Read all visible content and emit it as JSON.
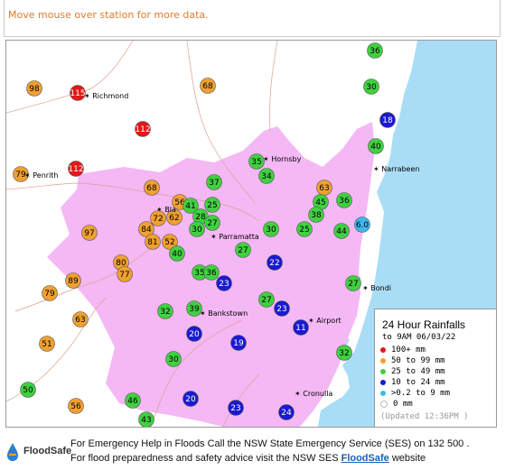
{
  "info_text": "Move mouse over station for more data.",
  "colors": {
    "red": "#e01919",
    "orange": "#f0a030",
    "green": "#40d040",
    "blue": "#1a1ad0",
    "cyan": "#40b8ee",
    "urban": "#f4b8f4",
    "sea": "#a8ddf5",
    "land": "#ffffff"
  },
  "places": [
    {
      "id": "richmond",
      "name": "Richmond"
    },
    {
      "id": "penrith",
      "name": "Penrith"
    },
    {
      "id": "hornsby",
      "name": "Hornsby"
    },
    {
      "id": "narrabeen",
      "name": "Narrabeen"
    },
    {
      "id": "blacktown",
      "name": "Bla"
    },
    {
      "id": "parramatta",
      "name": "Parramatta"
    },
    {
      "id": "bondi",
      "name": "Bondi"
    },
    {
      "id": "bankstown",
      "name": "Bankstown"
    },
    {
      "id": "airport",
      "name": "Airport"
    },
    {
      "id": "cronulla",
      "name": "Cronulla"
    }
  ],
  "stations": [
    {
      "v": "98",
      "c": "orange"
    },
    {
      "v": "115",
      "c": "red"
    },
    {
      "v": "68",
      "c": "orange"
    },
    {
      "v": "36",
      "c": "green"
    },
    {
      "v": "30",
      "c": "green"
    },
    {
      "v": "18",
      "c": "blue"
    },
    {
      "v": "112",
      "c": "red"
    },
    {
      "v": "40",
      "c": "green"
    },
    {
      "v": "79",
      "c": "orange"
    },
    {
      "v": "112",
      "c": "red"
    },
    {
      "v": "35",
      "c": "green"
    },
    {
      "v": "34",
      "c": "green"
    },
    {
      "v": "68",
      "c": "orange"
    },
    {
      "v": "37",
      "c": "green"
    },
    {
      "v": "63",
      "c": "orange"
    },
    {
      "v": "45",
      "c": "green"
    },
    {
      "v": "36",
      "c": "green"
    },
    {
      "v": "56",
      "c": "orange"
    },
    {
      "v": "41",
      "c": "green"
    },
    {
      "v": "25",
      "c": "green"
    },
    {
      "v": "72",
      "c": "orange"
    },
    {
      "v": "62",
      "c": "orange"
    },
    {
      "v": "28",
      "c": "green"
    },
    {
      "v": "27",
      "c": "green"
    },
    {
      "v": "38",
      "c": "green"
    },
    {
      "v": "6.0",
      "c": "cyan"
    },
    {
      "v": "84",
      "c": "orange"
    },
    {
      "v": "30",
      "c": "green"
    },
    {
      "v": "30",
      "c": "green"
    },
    {
      "v": "25",
      "c": "green"
    },
    {
      "v": "44",
      "c": "green"
    },
    {
      "v": "97",
      "c": "orange"
    },
    {
      "v": "81",
      "c": "orange"
    },
    {
      "v": "52",
      "c": "orange"
    },
    {
      "v": "27",
      "c": "green"
    },
    {
      "v": "40",
      "c": "green"
    },
    {
      "v": "80",
      "c": "orange"
    },
    {
      "v": "77",
      "c": "orange"
    },
    {
      "v": "22",
      "c": "blue"
    },
    {
      "v": "89",
      "c": "orange"
    },
    {
      "v": "35",
      "c": "green"
    },
    {
      "v": "36",
      "c": "green"
    },
    {
      "v": "23",
      "c": "blue"
    },
    {
      "v": "27",
      "c": "green"
    },
    {
      "v": "79",
      "c": "orange"
    },
    {
      "v": "27",
      "c": "green"
    },
    {
      "v": "23",
      "c": "blue"
    },
    {
      "v": "32",
      "c": "green"
    },
    {
      "v": "39",
      "c": "green"
    },
    {
      "v": "63",
      "c": "orange"
    },
    {
      "v": "11",
      "c": "blue"
    },
    {
      "v": "20",
      "c": "blue"
    },
    {
      "v": "51",
      "c": "orange"
    },
    {
      "v": "19",
      "c": "blue"
    },
    {
      "v": "32",
      "c": "green"
    },
    {
      "v": "30",
      "c": "green"
    },
    {
      "v": "50",
      "c": "green"
    },
    {
      "v": "46",
      "c": "green"
    },
    {
      "v": "20",
      "c": "blue"
    },
    {
      "v": "56",
      "c": "orange"
    },
    {
      "v": "23",
      "c": "blue"
    },
    {
      "v": "24",
      "c": "blue"
    },
    {
      "v": "43",
      "c": "green"
    }
  ],
  "legend": {
    "title": "24 Hour Rainfalls",
    "subtitle": "to 9AM 06/03/22",
    "rows": [
      {
        "label": "100+ mm",
        "c": "red"
      },
      {
        "label": "50  to 99 mm",
        "c": "orange"
      },
      {
        "label": "25  to 49 mm",
        "c": "green"
      },
      {
        "label": "10  to 24 mm",
        "c": "blue"
      },
      {
        "label": ">0.2 to 9 mm",
        "c": "cyan"
      },
      {
        "label": "0 mm",
        "c": "none"
      }
    ],
    "updated": "(Updated 12:36PM  )"
  },
  "footer": {
    "logo_text": "FloodSafe",
    "line1": "For Emergency Help in Floods Call the NSW State Emergency Service (SES) on 132 500 .",
    "line2_prefix": "For flood preparedness and safety advice visit the NSW SES ",
    "link_text": "FloodSafe",
    "line2_suffix": " website"
  }
}
